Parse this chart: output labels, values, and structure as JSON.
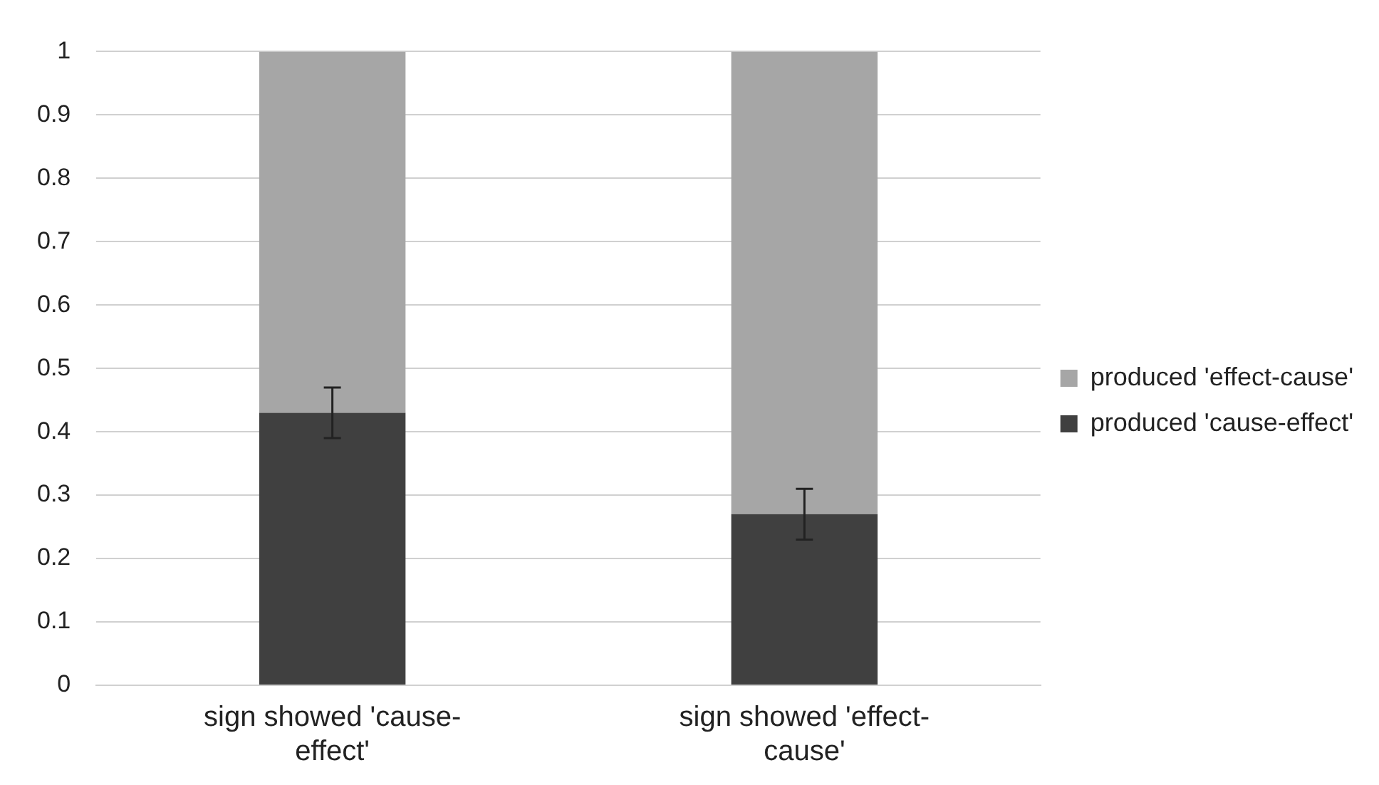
{
  "chart_data": {
    "type": "bar",
    "stacked": true,
    "categories": [
      "sign showed 'cause-effect'",
      "sign showed 'effect-cause'"
    ],
    "series": [
      {
        "name": "produced 'cause-effect'",
        "color": "#404040",
        "values": [
          0.43,
          0.27
        ],
        "errors": [
          0.04,
          0.04
        ]
      },
      {
        "name": "produced 'effect-cause'",
        "color": "#a6a6a6",
        "values": [
          0.57,
          0.73
        ]
      }
    ],
    "ylim": [
      0,
      1
    ],
    "yticks": [
      0,
      0.1,
      0.2,
      0.3,
      0.4,
      0.5,
      0.6,
      0.7,
      0.8,
      0.9,
      1
    ],
    "grid": "y",
    "legend": "right"
  }
}
